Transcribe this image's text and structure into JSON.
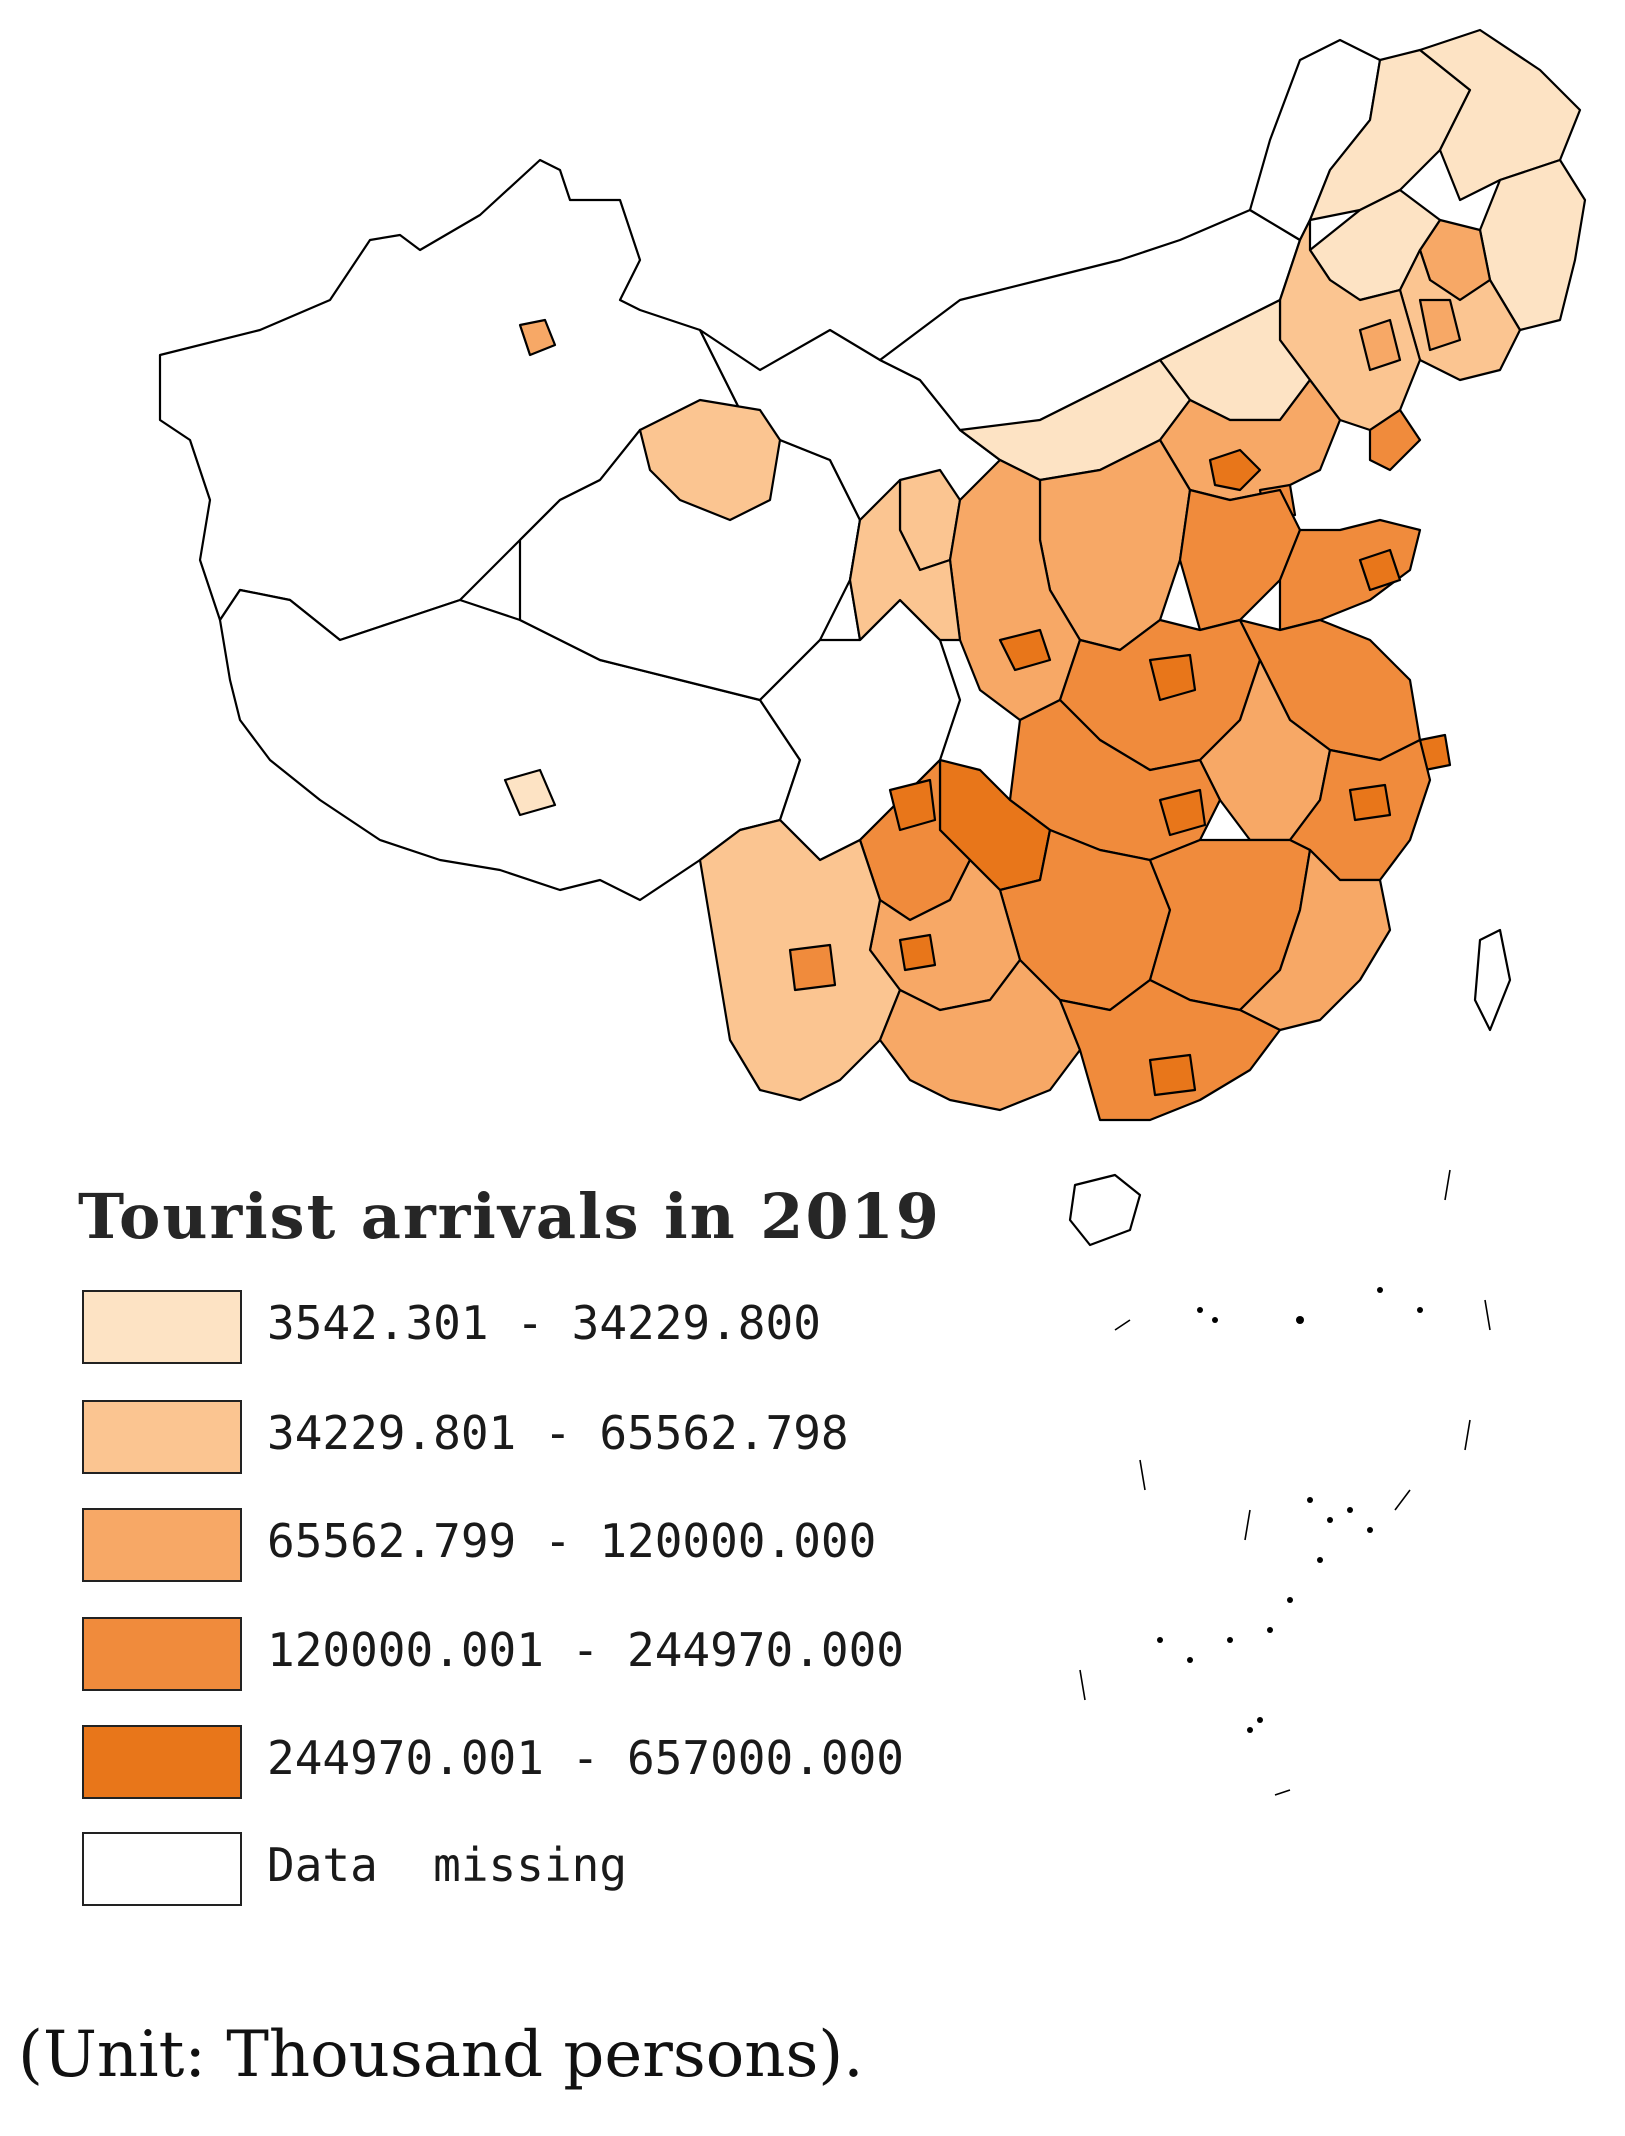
{
  "map": {
    "class_colors": [
      "#fde3c4",
      "#fbc591",
      "#f7a866",
      "#f08b3c",
      "#e8761a",
      "#ffffff"
    ]
  },
  "legend": {
    "title": "Tourist arrivals in 2019",
    "classes": [
      {
        "label": "3542.301 - 34229.800",
        "color": "#fde3c4"
      },
      {
        "label": "34229.801 - 65562.798",
        "color": "#fbc591"
      },
      {
        "label": "65562.799 - 120000.000",
        "color": "#f7a866"
      },
      {
        "label": "120000.001 - 244970.000",
        "color": "#f08b3c"
      },
      {
        "label": "244970.001 - 657000.000",
        "color": "#e8761a"
      },
      {
        "label": "Data  missing",
        "color": "#ffffff"
      }
    ]
  },
  "caption": "(Unit: Thousand persons)."
}
